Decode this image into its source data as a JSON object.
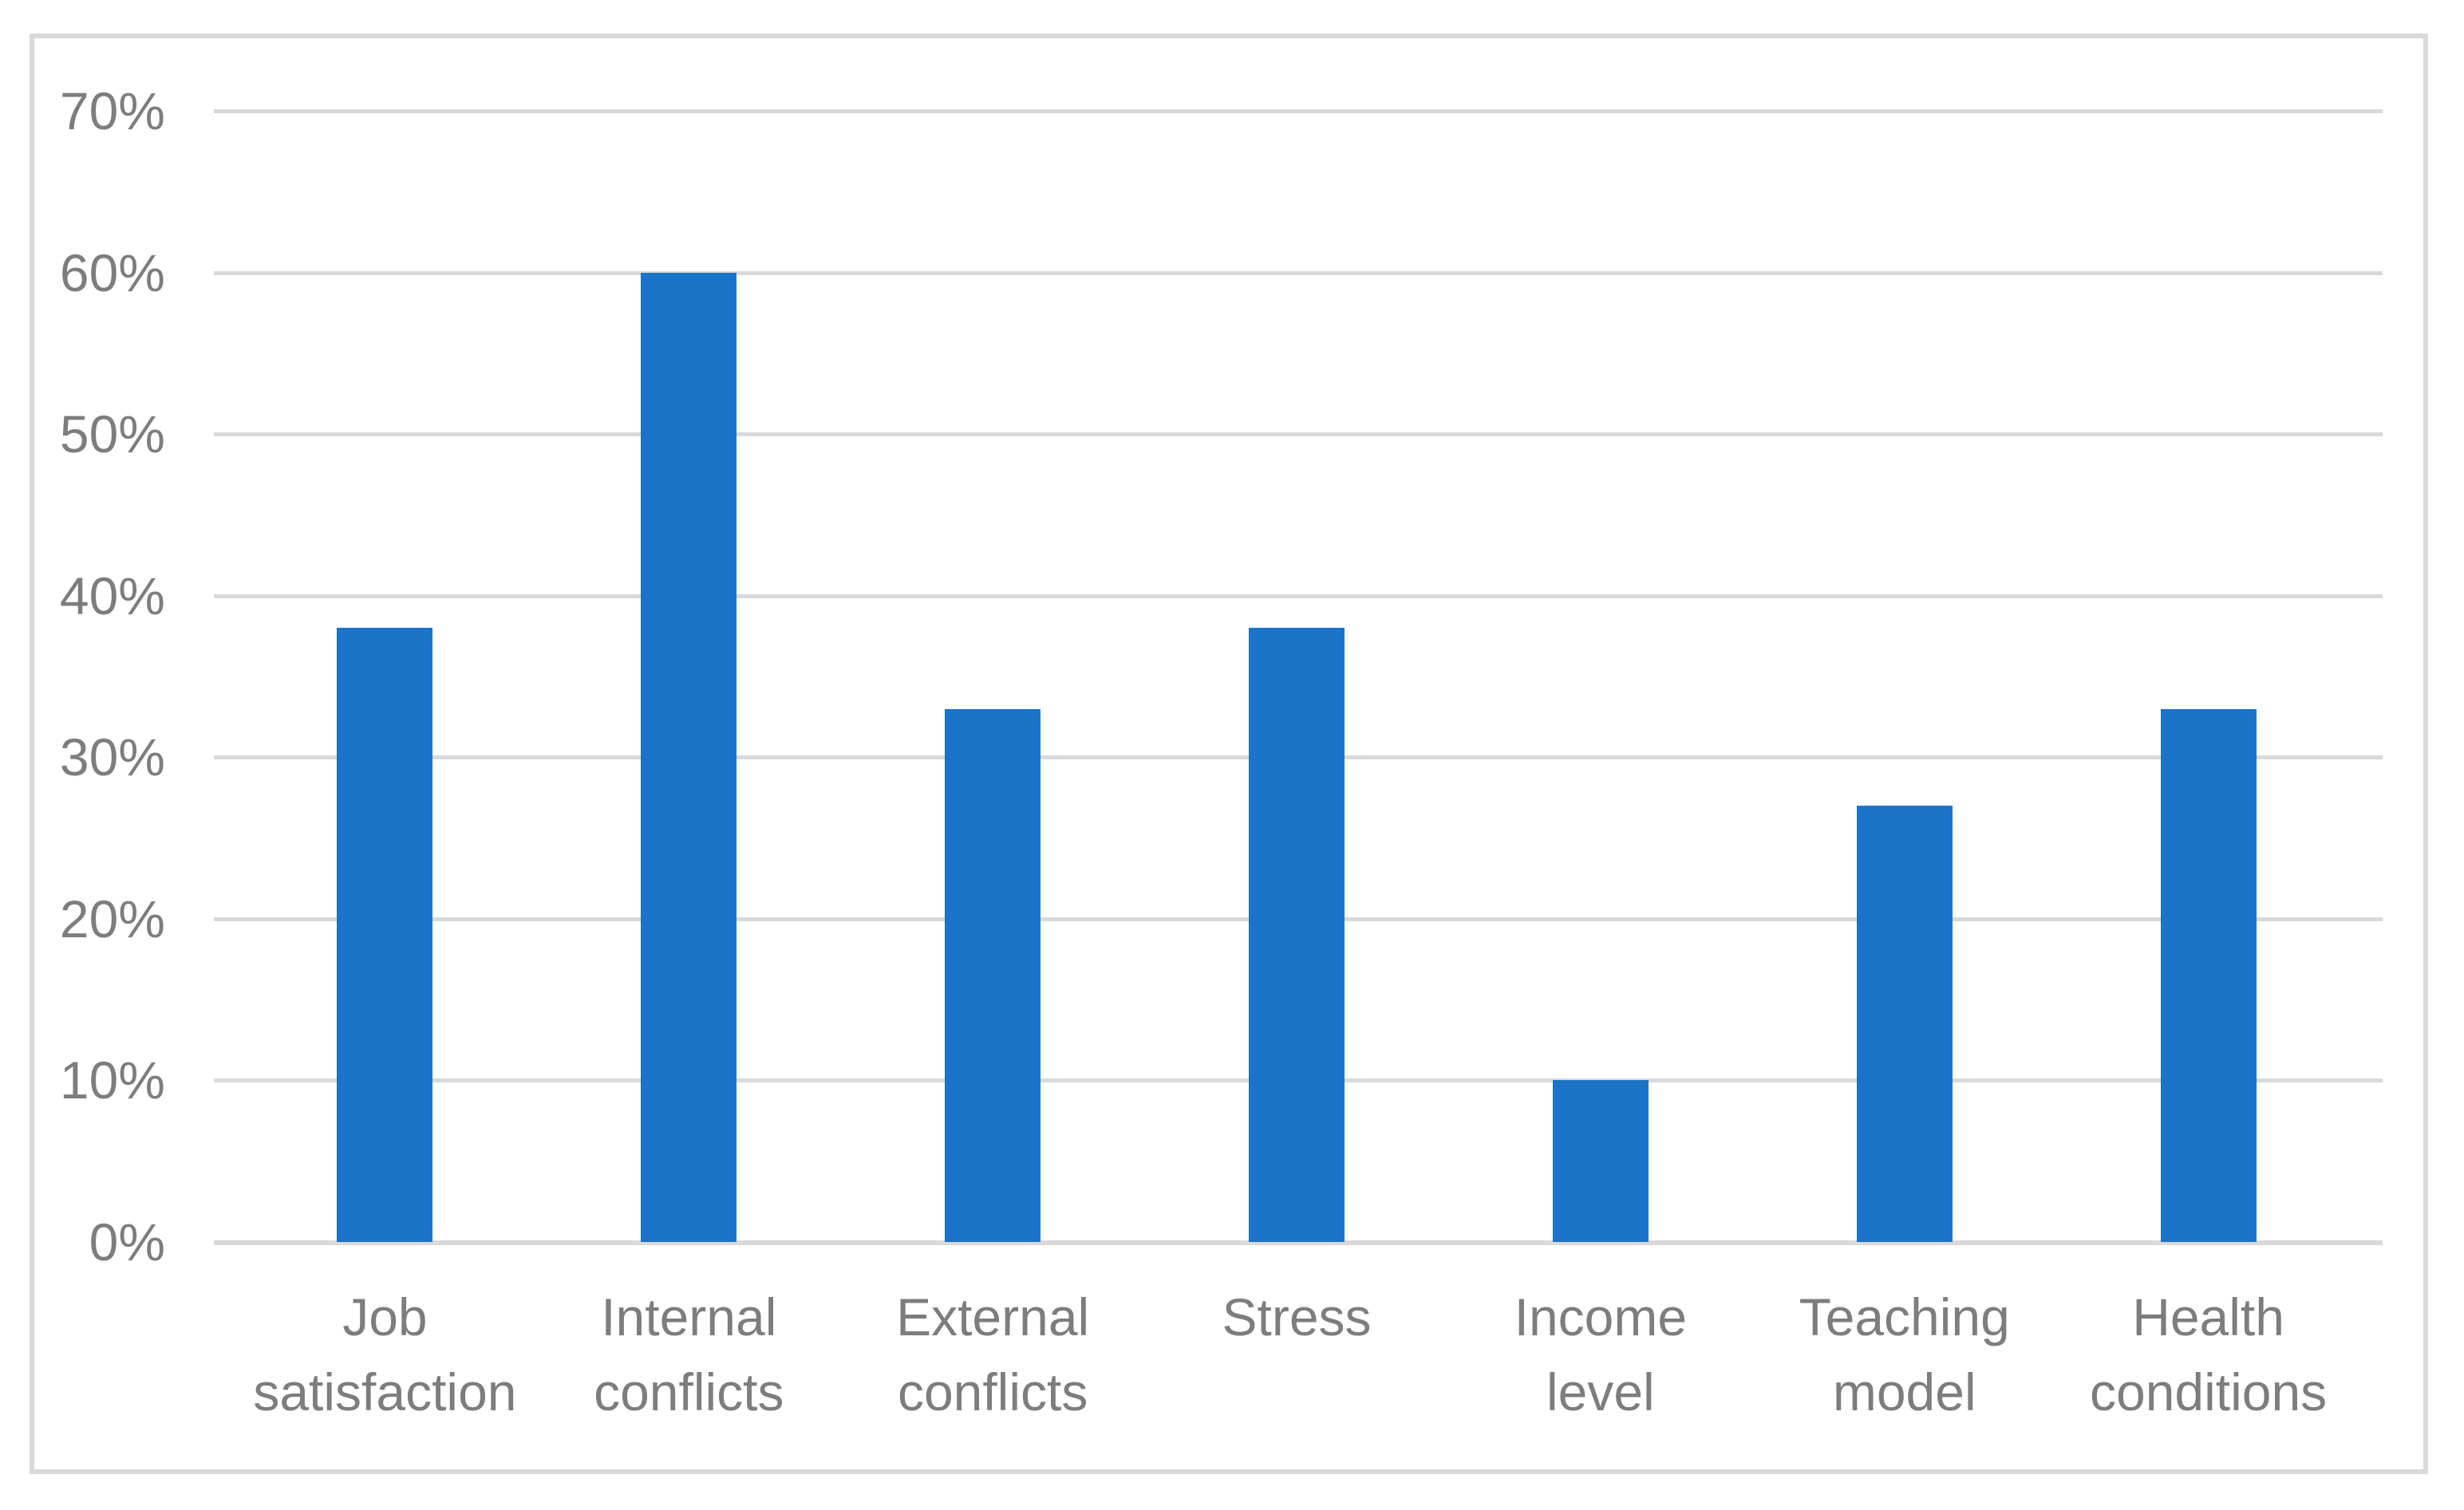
{
  "figure": {
    "background_color": "#FFFFFF",
    "border_color": "#D9D9D9",
    "title": ""
  },
  "chart_data": {
    "type": "bar",
    "title": "",
    "xlabel": "",
    "ylabel": "",
    "categories": [
      "Job satisfaction",
      "Internal conflicts",
      "External conflicts",
      "Stress",
      "Income level",
      "Teaching model",
      "Health conditions"
    ],
    "category_display_lines": [
      "Job\nsatisfaction",
      "Internal\nconflicts",
      "External\nconflicts",
      "Stress",
      "Income\nlevel",
      "Teaching\nmodel",
      "Health\nconditions"
    ],
    "values": [
      38,
      60,
      33,
      38,
      10,
      27,
      33
    ],
    "value_unit": "%",
    "ylim": [
      0,
      70
    ],
    "ytick_step": 10,
    "ytick_labels": [
      "0%",
      "10%",
      "20%",
      "30%",
      "40%",
      "50%",
      "60%",
      "70%"
    ],
    "grid": true,
    "gridline_color": "#D9D9D9",
    "legend_position": "none",
    "bar_color": "#1B74C8",
    "axis_text_color": "#7D7D7D"
  }
}
